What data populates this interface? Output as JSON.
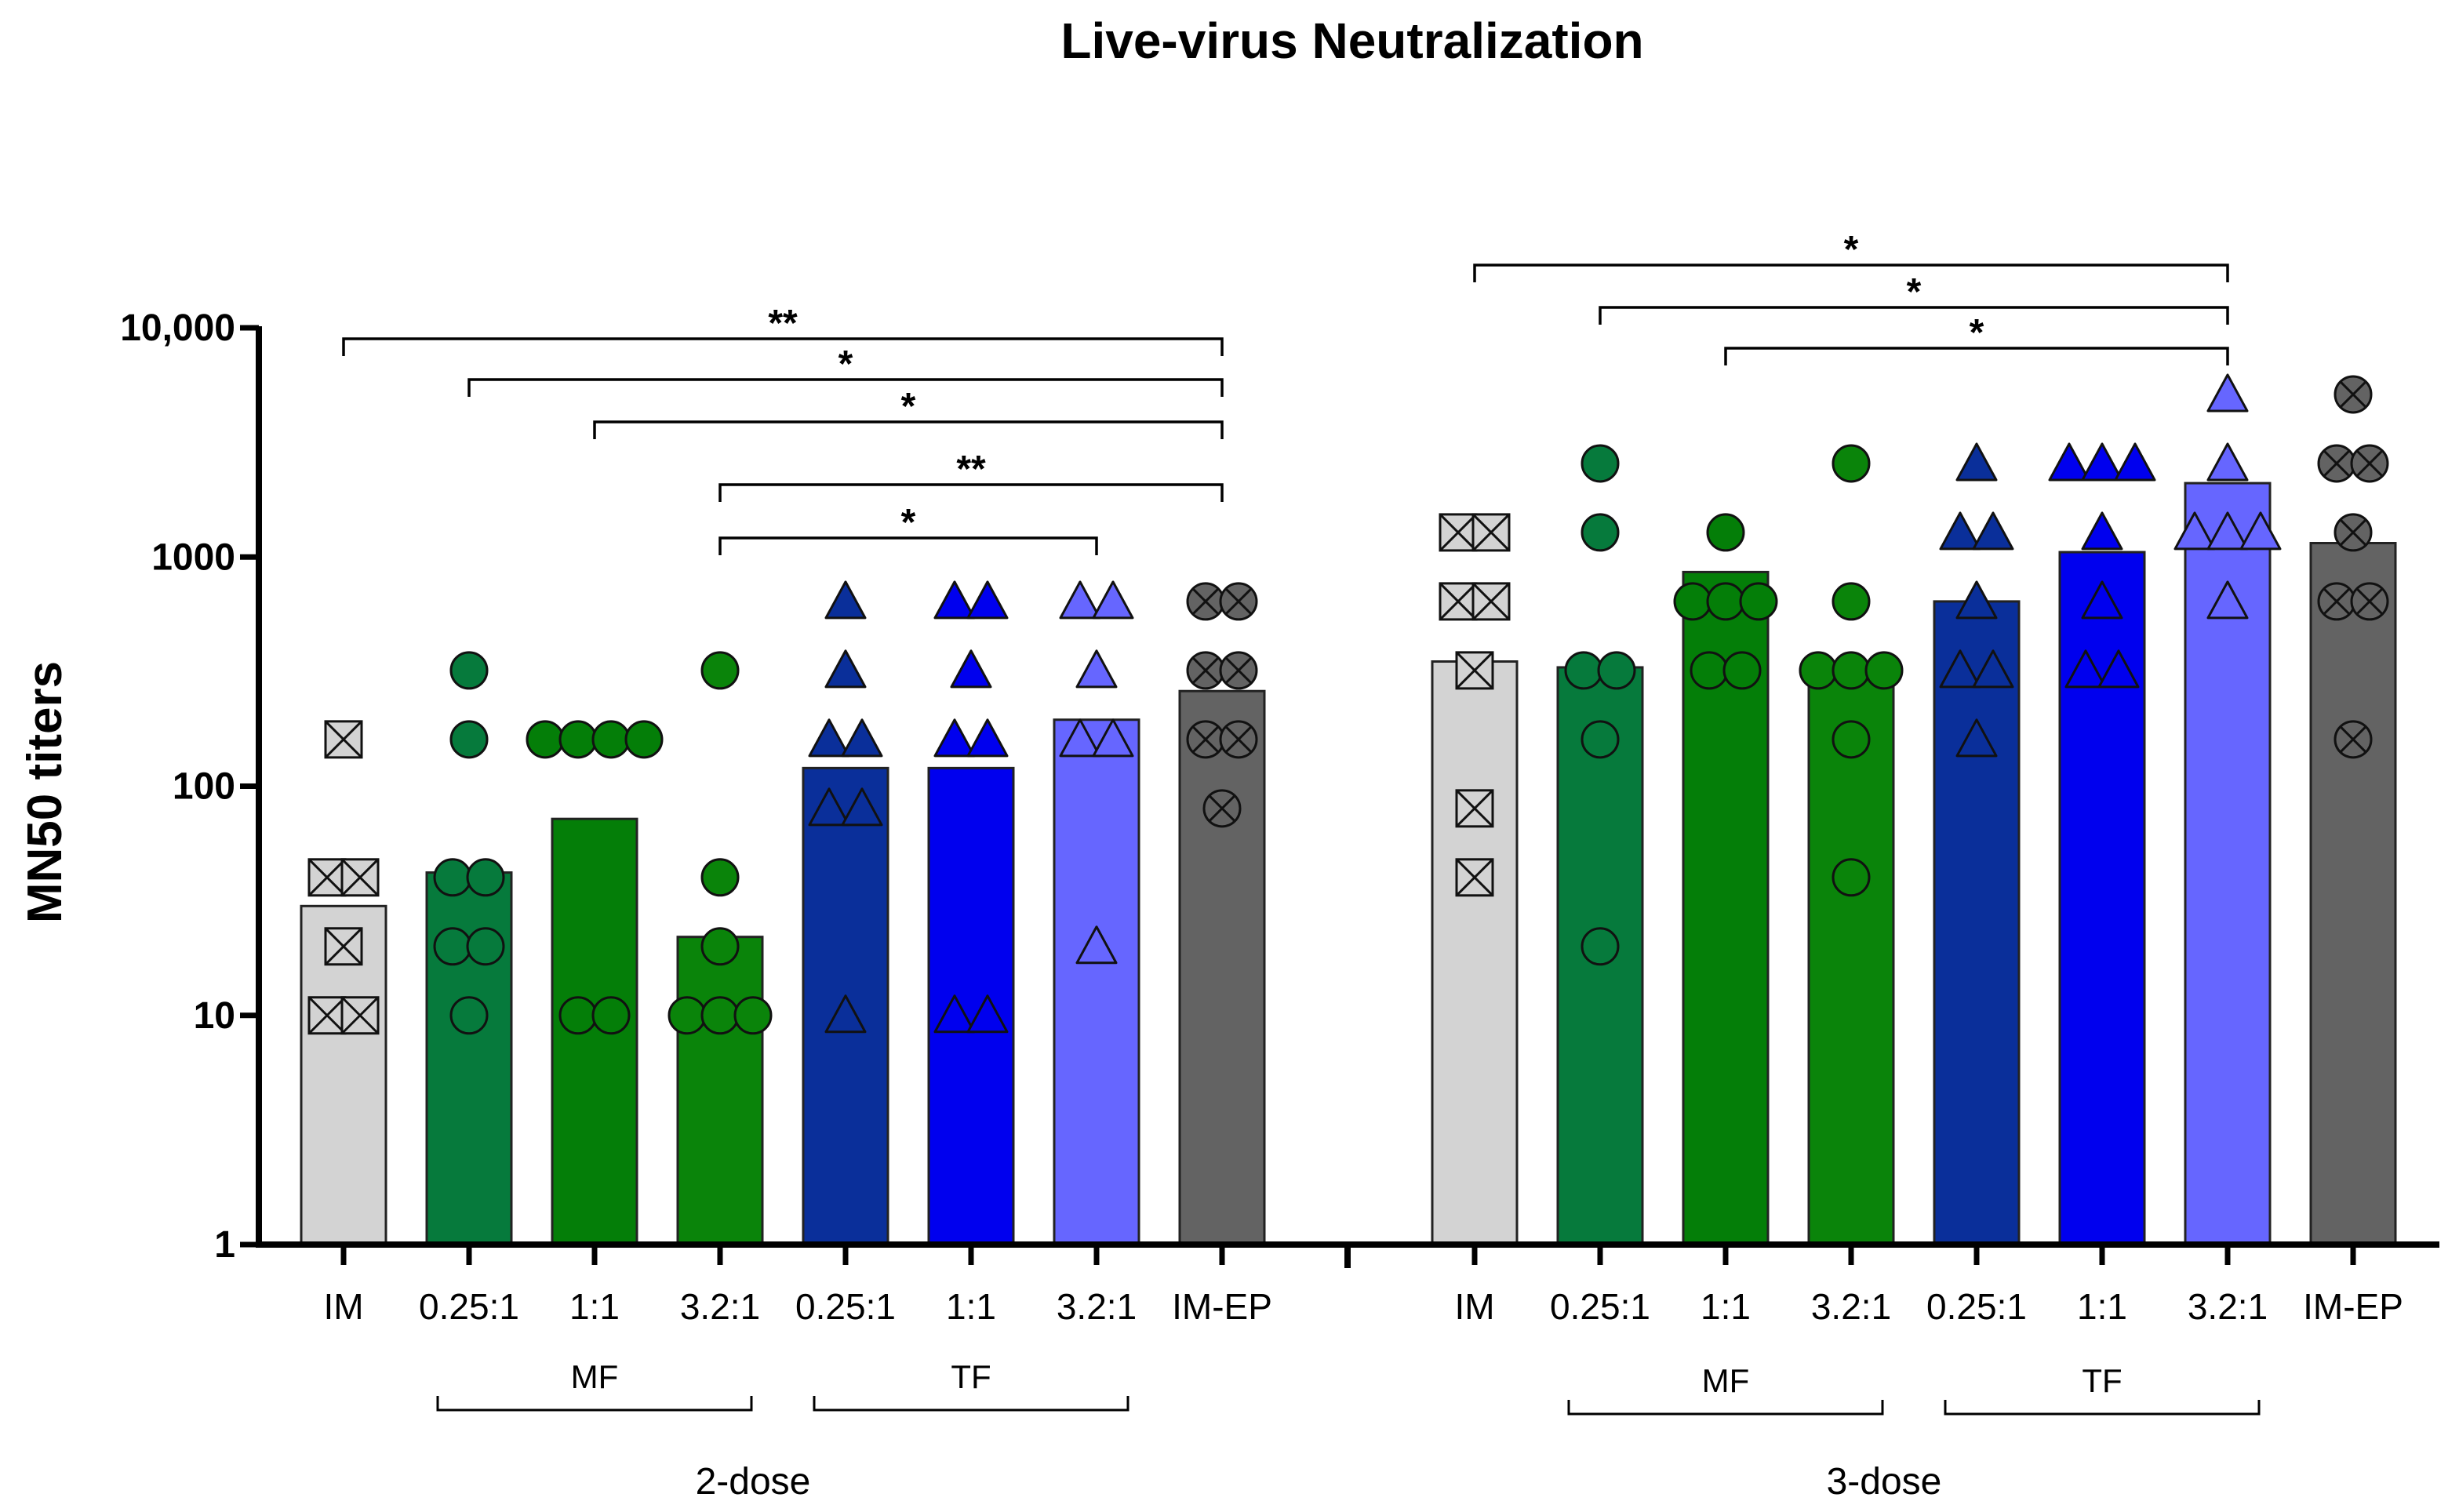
{
  "chart_data": {
    "type": "bar",
    "title": "Live-virus Neutralization",
    "ylabel": "MN50 titers",
    "xlabel": "",
    "yscale": "log",
    "ylim": [
      1,
      10000
    ],
    "yticks": [
      {
        "value": 1,
        "label": "1"
      },
      {
        "value": 10,
        "label": "10"
      },
      {
        "value": 100,
        "label": "100"
      },
      {
        "value": 1000,
        "label": "1000"
      },
      {
        "value": 10000,
        "label": "10,000"
      }
    ],
    "categories": [
      "IM",
      "0.25:1",
      "1:1",
      "3.2:1",
      "0.25:1",
      "1:1",
      "3.2:1",
      "IM-EP",
      "IM",
      "0.25:1",
      "1:1",
      "3.2:1",
      "0.25:1",
      "1:1",
      "3.2:1",
      "IM-EP"
    ],
    "subgroups": [
      {
        "label": "MF",
        "from": 1,
        "to": 3
      },
      {
        "label": "TF",
        "from": 4,
        "to": 6
      },
      {
        "label": "MF",
        "from": 9,
        "to": 11
      },
      {
        "label": "TF",
        "from": 12,
        "to": 14
      }
    ],
    "dose_groups": [
      {
        "label": "2-dose",
        "from": 0,
        "to": 7
      },
      {
        "label": "3-dose",
        "from": 8,
        "to": 15
      }
    ],
    "series": [
      {
        "name": "IM (2-dose)",
        "color": "#d3d3d3",
        "marker": "boxx",
        "bar": 30,
        "points": [
          160,
          40,
          40,
          20,
          10,
          10
        ]
      },
      {
        "name": "MF 0.25:1 (2-dose)",
        "color": "#067a3c",
        "marker": "circle",
        "bar": 42,
        "points": [
          320,
          160,
          40,
          40,
          20,
          20,
          10
        ]
      },
      {
        "name": "MF 1:1 (2-dose)",
        "color": "#047e08",
        "marker": "circle",
        "bar": 72,
        "points": [
          160,
          160,
          160,
          160,
          10,
          10
        ]
      },
      {
        "name": "MF 3.2:1 (2-dose)",
        "color": "#0a840a",
        "marker": "circle",
        "bar": 22,
        "points": [
          320,
          40,
          20,
          10,
          10,
          10
        ]
      },
      {
        "name": "TF 0.25:1 (2-dose)",
        "color": "#0a2f9a",
        "marker": "triangle",
        "bar": 120,
        "points": [
          640,
          320,
          160,
          160,
          80,
          80,
          10
        ]
      },
      {
        "name": "TF 1:1 (2-dose)",
        "color": "#0000ee",
        "marker": "triangle",
        "bar": 120,
        "points": [
          640,
          640,
          320,
          160,
          160,
          10,
          10
        ]
      },
      {
        "name": "TF 3.2:1 (2-dose)",
        "color": "#6666ff",
        "marker": "triangle",
        "bar": 195,
        "points": [
          640,
          640,
          320,
          160,
          160,
          20
        ]
      },
      {
        "name": "IM-EP (2-dose)",
        "color": "#636363",
        "marker": "circlex",
        "bar": 260,
        "points": [
          640,
          640,
          320,
          320,
          160,
          160,
          80
        ]
      },
      {
        "name": "IM (3-dose)",
        "color": "#d3d3d3",
        "marker": "boxx",
        "bar": 350,
        "points": [
          1280,
          1280,
          640,
          640,
          320,
          80,
          40
        ]
      },
      {
        "name": "MF 0.25:1 (3-dose)",
        "color": "#067a3c",
        "marker": "circle",
        "bar": 330,
        "points": [
          2560,
          1280,
          320,
          320,
          160,
          20
        ]
      },
      {
        "name": "MF 1:1 (3-dose)",
        "color": "#047e08",
        "marker": "circle",
        "bar": 860,
        "points": [
          1280,
          640,
          640,
          640,
          320,
          320
        ]
      },
      {
        "name": "MF 3.2:1 (3-dose)",
        "color": "#0a840a",
        "marker": "circle",
        "bar": 330,
        "points": [
          2560,
          640,
          320,
          320,
          320,
          160,
          40
        ]
      },
      {
        "name": "TF 0.25:1 (3-dose)",
        "color": "#0a2f9a",
        "marker": "triangle",
        "bar": 640,
        "points": [
          2560,
          1280,
          1280,
          640,
          320,
          320,
          160
        ]
      },
      {
        "name": "TF 1:1 (3-dose)",
        "color": "#0000ee",
        "marker": "triangle",
        "bar": 1050,
        "points": [
          2560,
          2560,
          2560,
          1280,
          640,
          320,
          320
        ]
      },
      {
        "name": "TF 3.2:1 (3-dose)",
        "color": "#6666ff",
        "marker": "triangle",
        "bar": 2100,
        "points": [
          5120,
          2560,
          1280,
          1280,
          1280,
          640
        ]
      },
      {
        "name": "IM-EP (3-dose)",
        "color": "#636363",
        "marker": "circlex",
        "bar": 1150,
        "points": [
          5120,
          2560,
          2560,
          1280,
          640,
          640,
          160
        ]
      }
    ],
    "significance": [
      {
        "from": 0,
        "to": 7,
        "label": "**",
        "level": 0
      },
      {
        "from": 1,
        "to": 7,
        "label": "*",
        "level": 1
      },
      {
        "from": 2,
        "to": 7,
        "label": "*",
        "level": 2
      },
      {
        "from": 3,
        "to": 7,
        "label": "**",
        "level": 3
      },
      {
        "from": 3,
        "to": 6,
        "label": "*",
        "level": 4
      },
      {
        "from": 8,
        "to": 14,
        "label": "*",
        "level": 0
      },
      {
        "from": 9,
        "to": 14,
        "label": "*",
        "level": 1
      },
      {
        "from": 10,
        "to": 14,
        "label": "*",
        "level": 2
      }
    ]
  }
}
